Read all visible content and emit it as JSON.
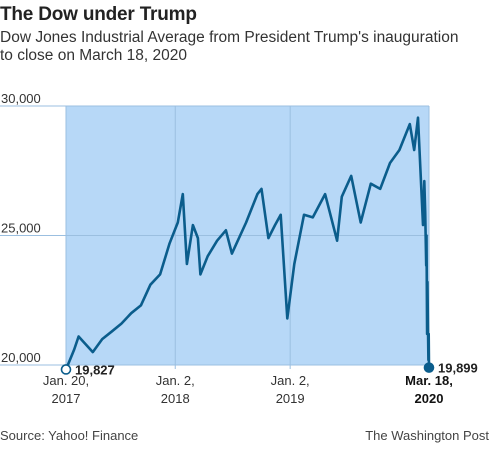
{
  "title": "The Dow under Trump",
  "subtitle": "Dow Jones Industrial Average from President Trump's inauguration to close on March 18, 2020",
  "source": "Source: Yahoo! Finance",
  "credit": "The Washington Post",
  "colors": {
    "line": "#0b5d8c",
    "fill": "#b7d8f7",
    "grid": "#9bbfe0",
    "start_marker_fill": "#ffffff",
    "end_marker_fill": "#0b5d8c"
  },
  "chart_data": {
    "type": "line",
    "title": "The Dow under Trump",
    "xlabel": "",
    "ylabel": "",
    "ylim": [
      20000,
      30000
    ],
    "xlim": [
      "2017-01-20",
      "2020-03-18"
    ],
    "grid": true,
    "yticks": [
      {
        "value": 20000,
        "label": "20,000"
      },
      {
        "value": 25000,
        "label": "25,000"
      },
      {
        "value": 30000,
        "label": "30,000"
      }
    ],
    "xticks": [
      {
        "date": "2017-01-20",
        "label1": "Jan. 20,",
        "label2": "2017",
        "bold": false
      },
      {
        "date": "2018-01-02",
        "label1": "Jan. 2,",
        "label2": "2018",
        "bold": false
      },
      {
        "date": "2019-01-02",
        "label1": "Jan. 2,",
        "label2": "2019",
        "bold": false
      },
      {
        "date": "2020-03-18",
        "label1": "Mar. 18,",
        "label2": "2020",
        "bold": true
      }
    ],
    "annotations": [
      {
        "date": "2017-01-20",
        "value": 19827,
        "label": "19,827"
      },
      {
        "date": "2020-03-18",
        "value": 19899,
        "label": "19,899"
      }
    ],
    "series": [
      {
        "x": [
          "2017-01-20",
          "2017-02-15",
          "2017-03-01",
          "2017-04-15",
          "2017-05-15",
          "2017-06-15",
          "2017-07-15",
          "2017-08-15",
          "2017-09-15",
          "2017-10-15",
          "2017-11-15",
          "2017-12-15",
          "2018-01-10",
          "2018-01-26",
          "2018-02-08",
          "2018-02-27",
          "2018-03-15",
          "2018-03-23",
          "2018-04-15",
          "2018-05-15",
          "2018-06-12",
          "2018-07-01",
          "2018-08-15",
          "2018-09-20",
          "2018-10-03",
          "2018-10-25",
          "2018-11-15",
          "2018-12-03",
          "2018-12-24",
          "2019-01-15",
          "2019-02-15",
          "2019-03-15",
          "2019-04-23",
          "2019-05-31",
          "2019-06-15",
          "2019-07-15",
          "2019-08-14",
          "2019-09-15",
          "2019-10-15",
          "2019-11-15",
          "2019-12-15",
          "2020-01-17",
          "2020-01-31",
          "2020-02-12",
          "2020-02-28",
          "2020-03-03",
          "2020-03-06",
          "2020-03-09",
          "2020-03-10",
          "2020-03-12",
          "2020-03-13",
          "2020-03-16",
          "2020-03-17",
          "2020-03-18"
        ],
        "values": [
          19827,
          20600,
          21100,
          20500,
          21000,
          21300,
          21600,
          22000,
          22300,
          23100,
          23500,
          24700,
          25500,
          26600,
          23900,
          25400,
          24900,
          23500,
          24200,
          24800,
          25200,
          24300,
          25500,
          26600,
          26800,
          24900,
          25400,
          25800,
          21800,
          23900,
          25800,
          25700,
          26600,
          24800,
          26500,
          27300,
          25500,
          27000,
          26800,
          27800,
          28300,
          29300,
          28300,
          29550,
          25400,
          27100,
          25900,
          23850,
          25000,
          21200,
          23200,
          20200,
          21200,
          19899
        ]
      }
    ]
  }
}
